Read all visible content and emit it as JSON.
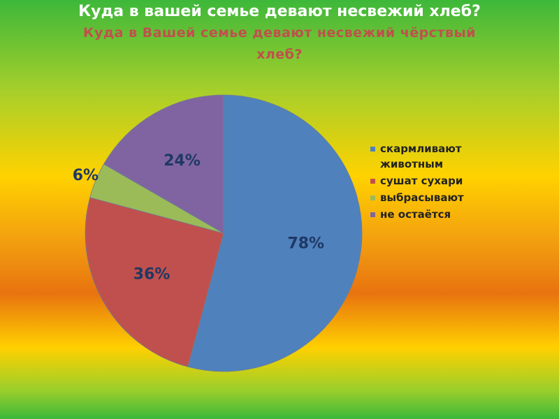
{
  "slide_title": "Куда в вашей семье девают несвежий хлеб?",
  "chart_data": {
    "type": "pie",
    "title": "Куда в Вашей семье девают несвежий чёрствый хлеб?",
    "categories": [
      "скармливают животным",
      "сушат сухари",
      "выбрасывают",
      "не остаётся"
    ],
    "values": [
      78,
      36,
      6,
      24
    ],
    "value_labels": [
      "78%",
      "36%",
      "6%",
      "24%"
    ],
    "colors": [
      "#4f81bd",
      "#c0504d",
      "#9bbb59",
      "#8064a2"
    ]
  }
}
